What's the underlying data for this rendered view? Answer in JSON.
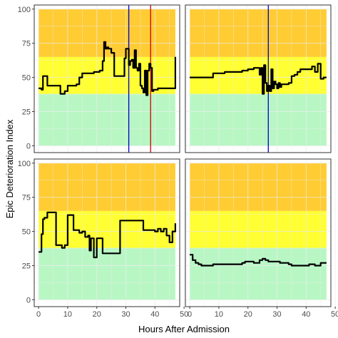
{
  "chart_data": {
    "type": "line",
    "layout": "2x2 facets",
    "xlabel": "Hours After Admission",
    "ylabel": "Epic Deterioration Index",
    "xlim": [
      -1.5,
      48.5
    ],
    "ylim": [
      -5,
      103
    ],
    "x_ticks": [
      0,
      10,
      20,
      30,
      40,
      50
    ],
    "y_ticks": [
      0,
      25,
      50,
      75,
      100
    ],
    "grid": true,
    "bands": [
      {
        "from": 0,
        "to": 38,
        "color": "#b8f7c4"
      },
      {
        "from": 38,
        "to": 65,
        "color": "#ffff33"
      },
      {
        "from": 65,
        "to": 100,
        "color": "#ffcc33"
      }
    ],
    "line_color": "#000000",
    "panels": [
      {
        "series": [
          {
            "x": [
              0,
              1,
              1.5,
              2.5,
              3,
              4,
              5,
              6,
              7.5,
              8,
              9,
              10,
              11,
              12,
              13,
              14,
              15,
              17,
              19,
              21,
              22,
              22.5,
              23,
              23.5,
              24,
              25,
              26,
              27,
              28,
              29,
              29.5,
              30,
              31,
              31.5,
              32,
              32.5,
              33,
              33.5,
              34,
              34.5,
              35,
              35.5,
              36,
              36.5,
              37,
              37.5,
              38,
              38.5,
              39,
              39.5,
              40,
              41,
              42,
              43,
              44,
              45,
              46,
              47
            ],
            "y": [
              42,
              41,
              51,
              51,
              44,
              44,
              44,
              44,
              38,
              38,
              40,
              44,
              44,
              44,
              45,
              50,
              53,
              53,
              54,
              55,
              62,
              76,
              71,
              72,
              71,
              68,
              51,
              51,
              51,
              51,
              64,
              71,
              59,
              62,
              63,
              57,
              70,
              57,
              55,
              60,
              44,
              42,
              39,
              55,
              37,
              55,
              60,
              57,
              40,
              41,
              41,
              42,
              42,
              42,
              42,
              42,
              42,
              65
            ]
          }
        ],
        "vlines": [
          {
            "x": 31,
            "color": "#0000cc"
          },
          {
            "x": 38.5,
            "color": "#cc0000"
          }
        ]
      },
      {
        "series": [
          {
            "x": [
              0,
              2,
              4,
              6,
              8,
              10,
              12,
              14,
              16,
              18,
              20,
              22,
              23,
              24,
              24.5,
              25,
              25.5,
              26,
              26.5,
              27,
              27.5,
              28,
              28.5,
              29,
              29.5,
              30,
              30.5,
              31,
              31.5,
              32,
              33,
              34,
              35,
              36,
              37,
              38,
              39,
              40,
              41,
              42,
              43,
              44,
              45,
              46,
              47
            ],
            "y": [
              50,
              50,
              50,
              50,
              53,
              53,
              54,
              54,
              54,
              55,
              56,
              57,
              57,
              52,
              57,
              38,
              59,
              46,
              40,
              44,
              40,
              56,
              42,
              47,
              45,
              42,
              46,
              43,
              45,
              45,
              45,
              46,
              51,
              52,
              54,
              56,
              56,
              56,
              56,
              58,
              54,
              60,
              49,
              50,
              50
            ]
          }
        ],
        "vlines": [
          {
            "x": 27,
            "color": "#0000cc"
          }
        ]
      },
      {
        "series": [
          {
            "x": [
              0,
              0.5,
              1,
              1.5,
              2,
              2.5,
              3,
              4,
              5,
              6,
              7,
              8,
              9,
              10,
              11,
              12,
              13,
              14,
              15,
              16,
              17,
              17.5,
              18,
              19,
              20,
              21,
              22,
              24,
              26,
              27,
              28,
              29,
              30,
              31,
              32,
              33,
              34,
              35,
              36,
              37,
              38,
              39,
              40,
              41,
              42,
              43,
              44,
              45,
              46,
              47
            ],
            "y": [
              35,
              35,
              48,
              59,
              60,
              60,
              64,
              64,
              64,
              40,
              40,
              38,
              40,
              62,
              62,
              51,
              51,
              49,
              50,
              46,
              47,
              36,
              45,
              31,
              45,
              45,
              34,
              34,
              34,
              34,
              58,
              58,
              58,
              58,
              58,
              58,
              58,
              58,
              51,
              51,
              51,
              51,
              50,
              52,
              50,
              52,
              47,
              42,
              50,
              56
            ]
          }
        ],
        "vlines": []
      },
      {
        "series": [
          {
            "x": [
              0,
              1,
              2,
              3,
              4,
              5,
              6,
              7,
              8,
              10,
              12,
              14,
              16,
              18,
              19,
              20,
              21,
              22,
              23,
              24,
              25,
              26,
              27,
              28,
              29,
              30,
              31,
              32,
              33,
              34,
              35,
              36,
              37,
              38,
              39,
              40,
              41,
              42,
              43,
              44,
              45,
              46,
              47
            ],
            "y": [
              33,
              29,
              27,
              26,
              25,
              25,
              25,
              25,
              26,
              26,
              26,
              26,
              26,
              27,
              28,
              28,
              28,
              27,
              27,
              29,
              30,
              29,
              28,
              28,
              28,
              28,
              27,
              27,
              27,
              26,
              25,
              25,
              25,
              25,
              25,
              25,
              26,
              26,
              25,
              25,
              27,
              27,
              27
            ]
          }
        ],
        "vlines": []
      }
    ]
  }
}
